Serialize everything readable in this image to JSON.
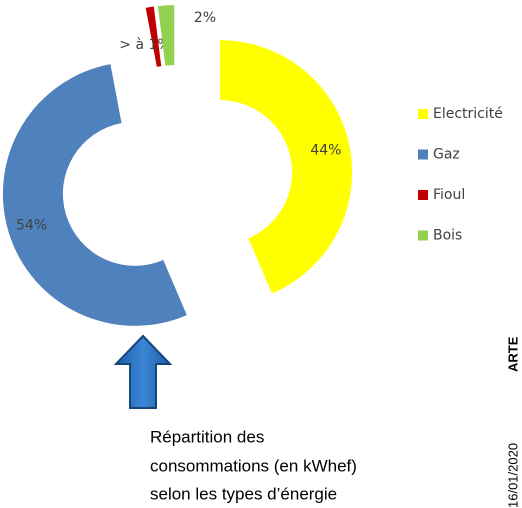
{
  "chart_data": {
    "type": "donut",
    "categories": [
      "Electricité",
      "Gaz",
      "Fioul",
      "Bois"
    ],
    "values": [
      44,
      54,
      1,
      2
    ],
    "value_labels": [
      "44%",
      "54%",
      "> à 1%",
      "2%"
    ],
    "colors": [
      "#ffff00",
      "#4f81bd",
      "#c00000",
      "#92d050"
    ],
    "legend": "right",
    "annotation_lines": [
      "Répartition des",
      "consommations (en kWhef)",
      "selon les types d’énergie"
    ],
    "side_date": "16/01/2020",
    "side_brand": "ARTE"
  }
}
